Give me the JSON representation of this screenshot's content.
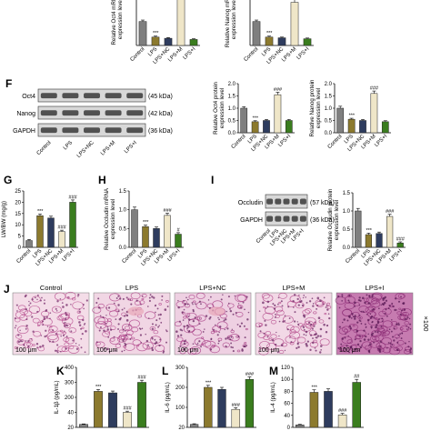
{
  "panel_letters": {
    "f": "F",
    "g": "G",
    "h": "H",
    "i": "I",
    "j": "J",
    "k": "K",
    "l": "L",
    "m": "M"
  },
  "groups": [
    "Control",
    "LPS",
    "LPS+NC",
    "LPS+M",
    "LPS+I"
  ],
  "colors": {
    "control": "#7f7f7f",
    "lps": "#8c7a2e",
    "nc": "#2e3c5e",
    "m": "#efe6c8",
    "i": "#3a7d1e",
    "border": "#222222"
  },
  "blots_f": [
    {
      "name": "Oct4",
      "kda": "(45 kDa)"
    },
    {
      "name": "Nanog",
      "kda": "(42 kDa)"
    },
    {
      "name": "GAPDH",
      "kda": "(36 kDa)"
    }
  ],
  "blots_i": [
    {
      "name": "Occludin",
      "kda": "(57 kDa)"
    },
    {
      "name": "GAPDH",
      "kda": "(36 kDa)"
    }
  ],
  "histology": {
    "scale": "100 μm",
    "magnification": "×100"
  },
  "chart_data": [
    {
      "id": "top-oct4-mrna",
      "type": "bar",
      "ylabel": "Relative Oct4 mRNA expression level",
      "categories": [
        "Control",
        "LPS",
        "LPS+NC",
        "LPS+M",
        "LPS+I"
      ],
      "values": [
        1.0,
        0.35,
        0.3,
        2.0,
        0.25
      ],
      "errors": [
        0.06,
        0.04,
        0.03,
        0.12,
        0.03
      ],
      "annotations": [
        "",
        "***",
        "",
        "",
        ""
      ],
      "ylim": [
        0,
        2.2
      ]
    },
    {
      "id": "top-nanog-mrna",
      "type": "bar",
      "ylabel": "Relative Nanog mRNA expression level",
      "categories": [
        "Control",
        "LPS",
        "LPS+NC",
        "LPS+M",
        "LPS+I"
      ],
      "values": [
        1.0,
        0.35,
        0.32,
        1.8,
        0.28
      ],
      "errors": [
        0.06,
        0.04,
        0.03,
        0.12,
        0.03
      ],
      "annotations": [
        "",
        "***",
        "",
        "",
        ""
      ],
      "ylim": [
        0,
        2.2
      ]
    },
    {
      "id": "f-oct4-protein",
      "type": "bar",
      "ylabel": "Relative Oct4 protein expression level",
      "categories": [
        "Control",
        "LPS",
        "LPS+NC",
        "LPS+M",
        "LPS+I"
      ],
      "values": [
        1.0,
        0.45,
        0.5,
        1.55,
        0.5
      ],
      "errors": [
        0.06,
        0.04,
        0.04,
        0.1,
        0.04
      ],
      "annotations": [
        "",
        "***",
        "",
        "###",
        ""
      ],
      "ylim": [
        0,
        2.0
      ],
      "ticks": [
        "0.0",
        "0.5",
        "1.0",
        "1.5",
        "2.0"
      ]
    },
    {
      "id": "f-nanog-protein",
      "type": "bar",
      "ylabel": "Relative Nanog protein expression level",
      "categories": [
        "Control",
        "LPS",
        "LPS+NC",
        "LPS+M",
        "LPS+I"
      ],
      "values": [
        1.0,
        0.55,
        0.5,
        1.6,
        0.45
      ],
      "errors": [
        0.08,
        0.04,
        0.04,
        0.1,
        0.04
      ],
      "annotations": [
        "",
        "***",
        "",
        "###",
        ""
      ],
      "ylim": [
        0,
        2.0
      ],
      "ticks": [
        "0.0",
        "0.5",
        "1.0",
        "1.5",
        "2.0"
      ]
    },
    {
      "id": "g-lw-bw",
      "type": "bar",
      "ylabel": "LW/BW (mg/g)",
      "categories": [
        "Control",
        "LPS",
        "LPS+NC",
        "LPS+M",
        "LPS+I"
      ],
      "values": [
        3,
        14,
        13,
        7,
        20
      ],
      "errors": [
        0.5,
        0.8,
        0.8,
        0.6,
        1.0
      ],
      "annotations": [
        "",
        "***",
        "",
        "###",
        "###"
      ],
      "ylim": [
        0,
        25
      ],
      "ticks": [
        "0",
        "5",
        "10",
        "15",
        "20",
        "25"
      ]
    },
    {
      "id": "h-occludin-mrna",
      "type": "bar",
      "ylabel": "Relative Occludin mRNA expression level",
      "categories": [
        "Control",
        "LPS",
        "LPS+NC",
        "LPS+M",
        "LPS+I"
      ],
      "values": [
        1.0,
        0.55,
        0.5,
        0.85,
        0.35
      ],
      "errors": [
        0.07,
        0.04,
        0.04,
        0.06,
        0.04
      ],
      "annotations": [
        "",
        "***",
        "",
        "###",
        "#"
      ],
      "ylim": [
        0,
        1.5
      ],
      "ticks": [
        "0.0",
        "0.5",
        "1.0",
        "1.5"
      ]
    },
    {
      "id": "i-occludin-protein",
      "type": "bar",
      "ylabel": "Relative Occludin protein expression level",
      "categories": [
        "Control",
        "LPS",
        "LPS+NC",
        "LPS+M",
        "LPS+I"
      ],
      "values": [
        1.0,
        0.35,
        0.38,
        0.85,
        0.12
      ],
      "errors": [
        0.07,
        0.04,
        0.04,
        0.06,
        0.03
      ],
      "annotations": [
        "",
        "***",
        "",
        "###",
        "###"
      ],
      "ylim": [
        0,
        1.5
      ],
      "ticks": [
        "0.0",
        "0.5",
        "1.0",
        "1.5"
      ]
    },
    {
      "id": "k-il1b",
      "type": "bar",
      "ylabel": "IL-1β (pg/mL)",
      "categories": [
        "Control",
        "LPS",
        "LPS+NC",
        "LPS+M",
        "LPS+I"
      ],
      "values": [
        20,
        240,
        230,
        100,
        300
      ],
      "errors": [
        3,
        12,
        12,
        8,
        14
      ],
      "annotations": [
        "",
        "***",
        "",
        "###",
        "###"
      ],
      "ylim": [
        0,
        400
      ],
      "ticks": [
        "20",
        "40",
        "200",
        "300",
        "400"
      ]
    },
    {
      "id": "l-il6",
      "type": "bar",
      "ylabel": "IL-6 (pg/mL)",
      "categories": [
        "Control",
        "LPS",
        "LPS+NC",
        "LPS+M",
        "LPS+I"
      ],
      "values": [
        15,
        200,
        190,
        90,
        240
      ],
      "errors": [
        3,
        10,
        10,
        8,
        12
      ],
      "annotations": [
        "",
        "***",
        "",
        "###",
        "###"
      ],
      "ylim": [
        0,
        300
      ],
      "ticks": [
        "20",
        "100",
        "200",
        "300"
      ]
    },
    {
      "id": "m-il4",
      "type": "bar",
      "ylabel": "IL-4 (pg/mL)",
      "categories": [
        "Control",
        "LPS",
        "LPS+NC",
        "LPS+M",
        "LPS+I"
      ],
      "values": [
        5,
        70,
        72,
        25,
        90
      ],
      "errors": [
        1,
        5,
        5,
        3,
        6
      ],
      "annotations": [
        "",
        "***",
        "",
        "###",
        "##"
      ],
      "ylim": [
        0,
        120
      ],
      "ticks": [
        "0",
        "40",
        "60",
        "80",
        "100",
        "120"
      ]
    }
  ]
}
